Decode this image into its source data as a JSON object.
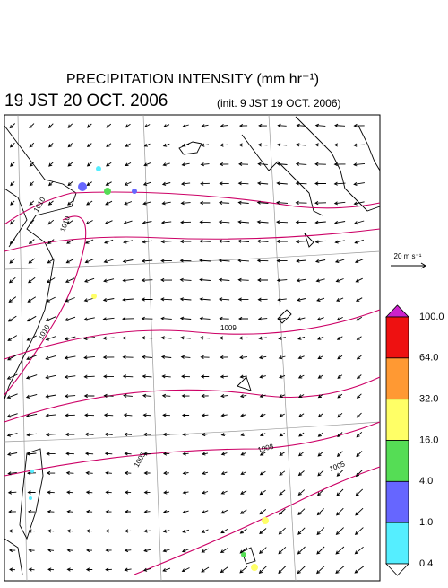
{
  "header": {
    "title": "PRECIPITATION INTENSITY (mm hr⁻¹)",
    "valid_time": "19 JST 20 OCT. 2006",
    "init_time": "(init. 9 JST 19 OCT. 2006)"
  },
  "vector_legend": {
    "label": "20 m s⁻¹"
  },
  "contour_labels": [
    "1010",
    "1010",
    "1010",
    "1009",
    "1008",
    "1005",
    "1005"
  ],
  "colorbar": {
    "labels": [
      "100.0",
      "64.0",
      "32.0",
      "16.0",
      "4.0",
      "1.0",
      "0.4"
    ],
    "colors": [
      "#cc22cc",
      "#ee1111",
      "#ff9933",
      "#ffff66",
      "#55dd55",
      "#6666ff",
      "#55eeff",
      "#ffffff"
    ]
  }
}
